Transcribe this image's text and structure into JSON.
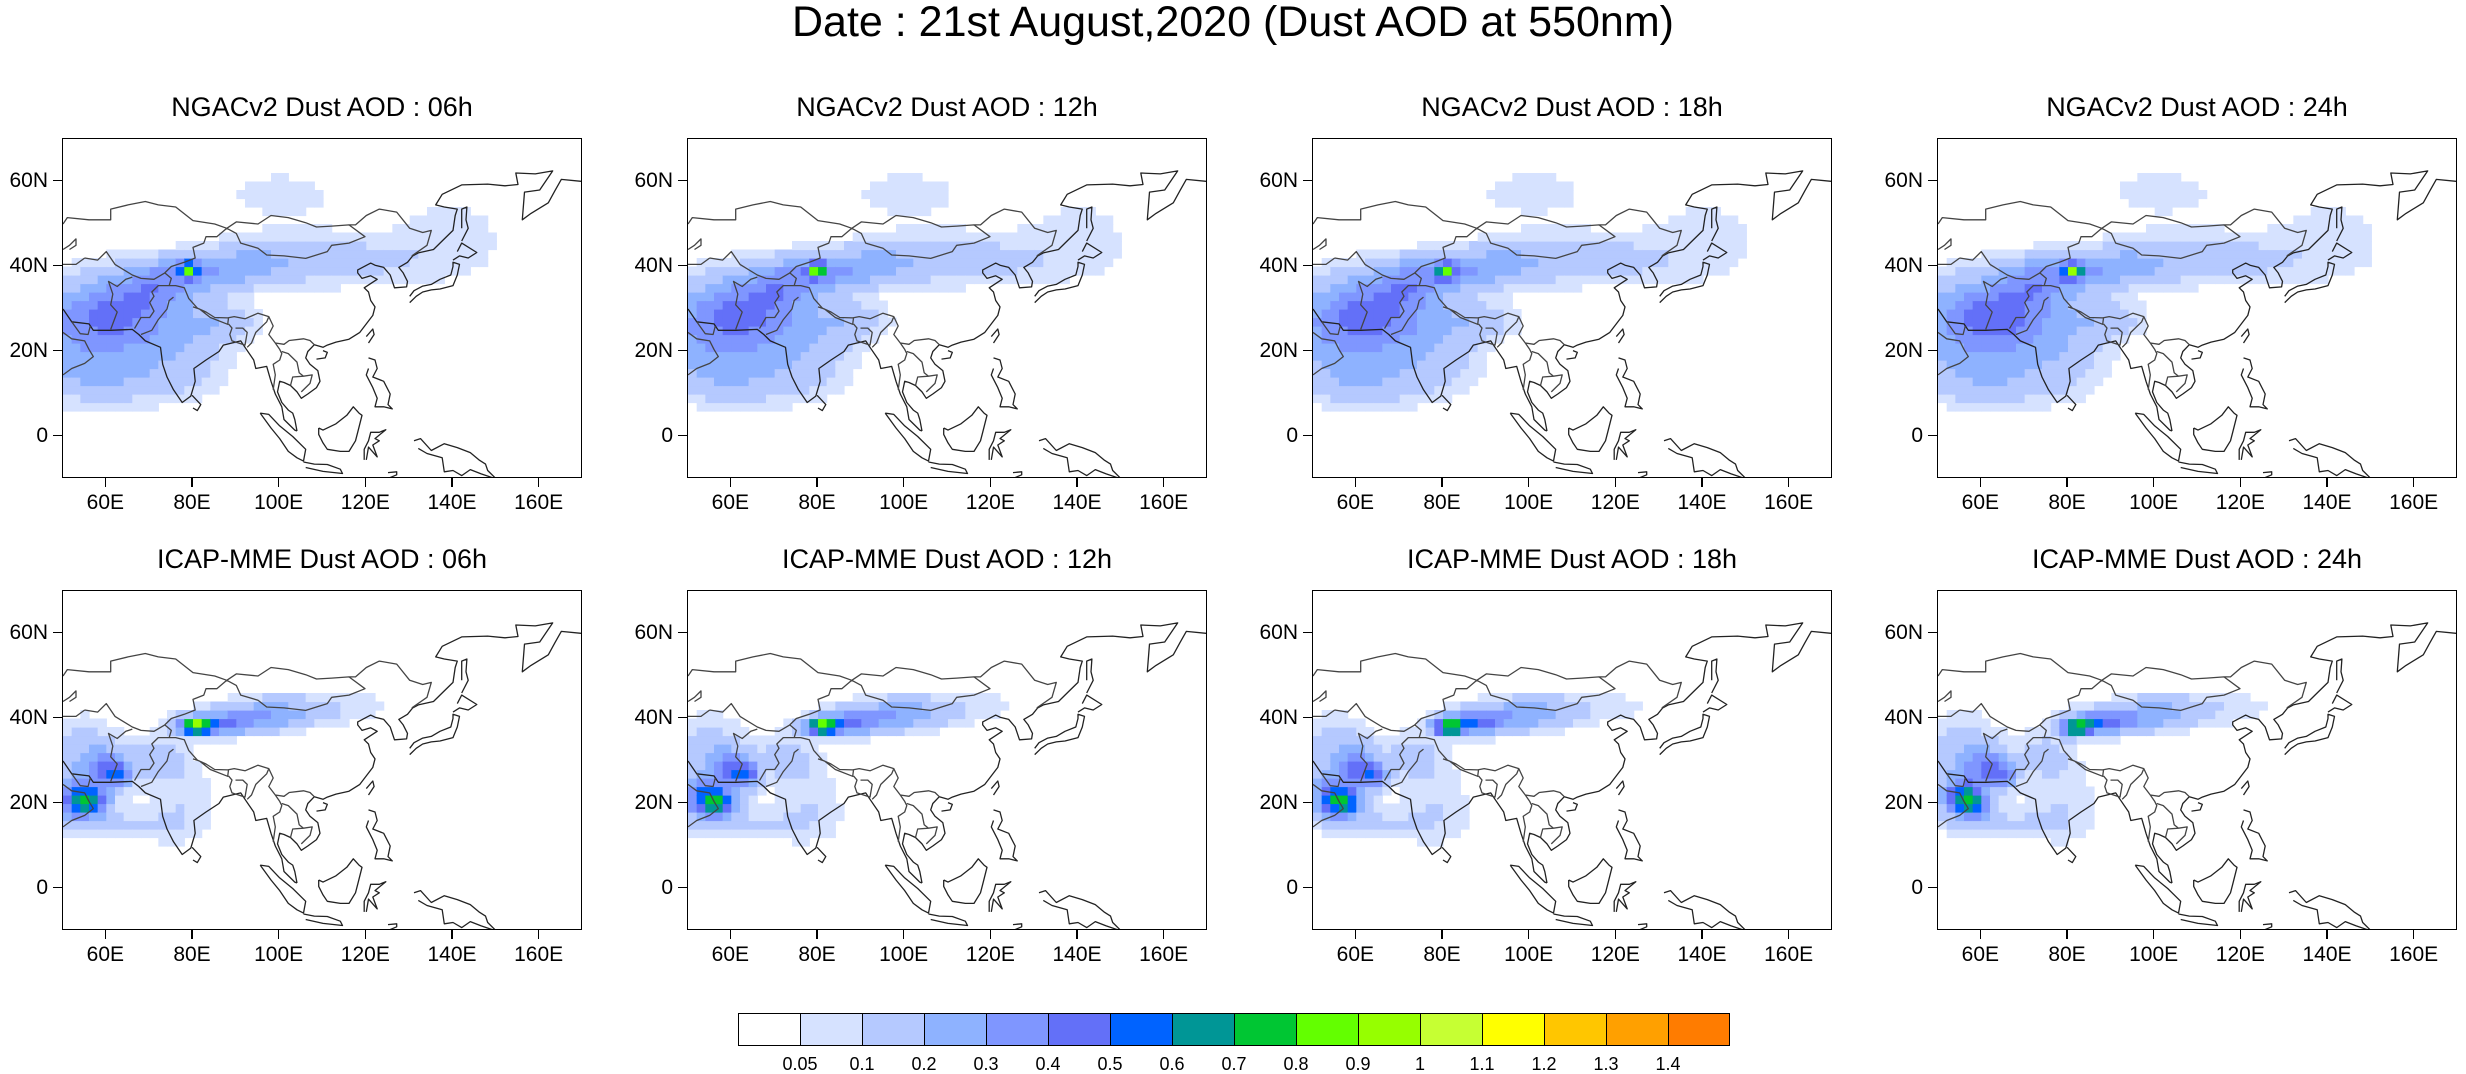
{
  "title": "Date : 21st August,2020 (Dust AOD at 550nm)",
  "panels": [
    {
      "title": "NGACv2 Dust AOD : 06h",
      "model": "NGACv2",
      "hour": "06h"
    },
    {
      "title": "NGACv2 Dust AOD : 12h",
      "model": "NGACv2",
      "hour": "12h"
    },
    {
      "title": "NGACv2 Dust AOD : 18h",
      "model": "NGACv2",
      "hour": "18h"
    },
    {
      "title": "NGACv2 Dust AOD : 24h",
      "model": "NGACv2",
      "hour": "24h"
    },
    {
      "title": "ICAP-MME Dust AOD : 06h",
      "model": "ICAP-MME",
      "hour": "06h"
    },
    {
      "title": "ICAP-MME Dust AOD : 12h",
      "model": "ICAP-MME",
      "hour": "12h"
    },
    {
      "title": "ICAP-MME Dust AOD : 18h",
      "model": "ICAP-MME",
      "hour": "18h"
    },
    {
      "title": "ICAP-MME Dust AOD : 24h",
      "model": "ICAP-MME",
      "hour": "24h"
    }
  ],
  "lat_ticks": [
    "60N",
    "40N",
    "20N",
    "0"
  ],
  "lon_ticks": [
    "60E",
    "80E",
    "100E",
    "120E",
    "140E",
    "160E"
  ],
  "colorbar": {
    "labels": [
      "0.05",
      "0.1",
      "0.2",
      "0.3",
      "0.4",
      "0.5",
      "0.6",
      "0.7",
      "0.8",
      "0.9",
      "1",
      "1.1",
      "1.2",
      "1.3",
      "1.4"
    ],
    "colors": [
      "#ffffff",
      "#d6e2ff",
      "#b5c9ff",
      "#8eb2ff",
      "#7f96ff",
      "#6370f8",
      "#0063ff",
      "#009696",
      "#00c633",
      "#63ff00",
      "#96ff00",
      "#c6ff33",
      "#ffff00",
      "#ffc600",
      "#ffa000",
      "#ff7c00",
      "#ff1900"
    ]
  },
  "map_extent": {
    "lon": [
      50,
      170
    ],
    "lat": [
      -10,
      70
    ]
  }
}
